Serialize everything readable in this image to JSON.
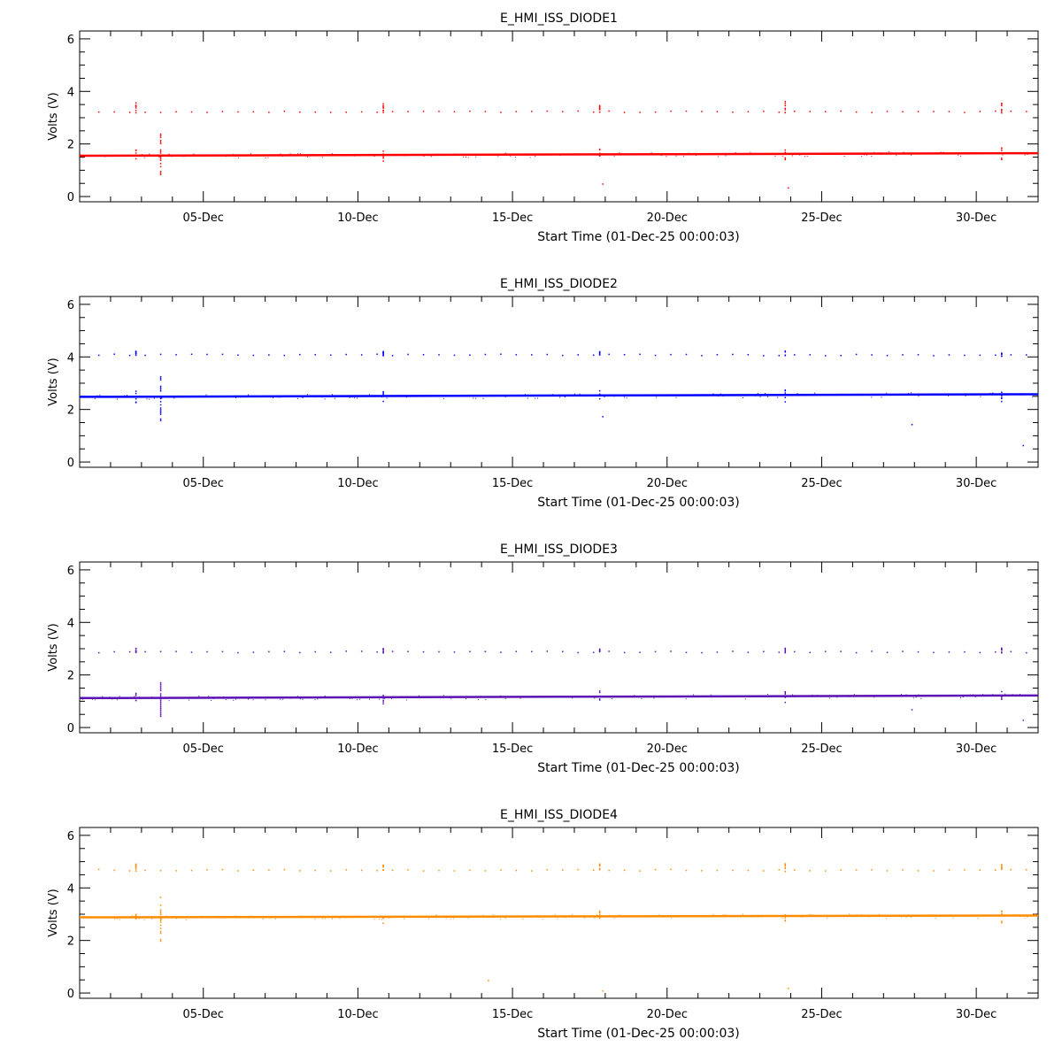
{
  "chart_data": [
    {
      "type": "scatter",
      "title": "E_HMI_ISS_DIODE1",
      "xlabel": "Start Time (01-Dec-25 00:00:03)",
      "ylabel": "Volts (V)",
      "color": "#ff0000",
      "xlim": [
        "2025-12-01",
        "2026-01-01"
      ],
      "ylim": [
        -0.2,
        6.3
      ],
      "y_ticks": [
        0,
        2,
        4,
        6
      ],
      "x_ticks": [
        "05-Dec",
        "10-Dec",
        "15-Dec",
        "20-Dec",
        "25-Dec",
        "30-Dec"
      ],
      "baseline": {
        "start": 1.55,
        "end": 1.65
      },
      "periodic_level": 3.25,
      "burst_days": [
        2.8,
        10.8,
        17.8,
        23.8,
        30.8
      ],
      "burst_high": 3.6,
      "outliers": [
        {
          "x": "2025-12-03.6",
          "y": 2.4
        },
        {
          "x": "2025-12-03.6",
          "y": 0.8
        },
        {
          "x": "2025-12-17.9",
          "y": 0.5
        },
        {
          "x": "2025-12-23.9",
          "y": 0.35
        }
      ]
    },
    {
      "type": "scatter",
      "title": "E_HMI_ISS_DIODE2",
      "xlabel": "Start Time (01-Dec-25 00:00:03)",
      "ylabel": "Volts (V)",
      "color": "#0000ff",
      "xlim": [
        "2025-12-01",
        "2026-01-01"
      ],
      "ylim": [
        -0.2,
        6.3
      ],
      "y_ticks": [
        0,
        2,
        4,
        6
      ],
      "x_ticks": [
        "05-Dec",
        "10-Dec",
        "15-Dec",
        "20-Dec",
        "25-Dec",
        "30-Dec"
      ],
      "baseline": {
        "start": 2.48,
        "end": 2.58
      },
      "periodic_level": 4.1,
      "burst_days": [
        2.8,
        10.8,
        17.8,
        23.8,
        30.8
      ],
      "burst_high": 4.2,
      "outliers": [
        {
          "x": "2025-12-03.6",
          "y": 3.3
        },
        {
          "x": "2025-12-03.6",
          "y": 1.6
        },
        {
          "x": "2025-12-17.9",
          "y": 1.75
        },
        {
          "x": "2025-12-27.9",
          "y": 1.45
        },
        {
          "x": "2025-12-31.5",
          "y": 0.65
        }
      ]
    },
    {
      "type": "scatter",
      "title": "E_HMI_ISS_DIODE3",
      "xlabel": "Start Time (01-Dec-25 00:00:03)",
      "ylabel": "Volts (V)",
      "color": "#5a12b4",
      "xlim": [
        "2025-12-01",
        "2026-01-01"
      ],
      "ylim": [
        -0.2,
        6.3
      ],
      "y_ticks": [
        0,
        2,
        4,
        6
      ],
      "x_ticks": [
        "05-Dec",
        "10-Dec",
        "15-Dec",
        "20-Dec",
        "25-Dec",
        "30-Dec"
      ],
      "baseline": {
        "start": 1.12,
        "end": 1.22
      },
      "periodic_level": 2.9,
      "burst_days": [
        2.8,
        10.8,
        17.8,
        23.8,
        30.8
      ],
      "burst_high": 3.0,
      "outliers": [
        {
          "x": "2025-12-03.6",
          "y": 1.9
        },
        {
          "x": "2025-12-03.6",
          "y": 0.45
        },
        {
          "x": "2025-12-27.9",
          "y": 0.7
        },
        {
          "x": "2025-12-31.5",
          "y": 0.3
        }
      ]
    },
    {
      "type": "scatter",
      "title": "E_HMI_ISS_DIODE4",
      "xlabel": "Start Time (01-Dec-25 00:00:03)",
      "ylabel": "Volts (V)",
      "color": "#ff8c00",
      "xlim": [
        "2025-12-01",
        "2026-01-01"
      ],
      "ylim": [
        -0.2,
        6.3
      ],
      "y_ticks": [
        0,
        2,
        4,
        6
      ],
      "x_ticks": [
        "05-Dec",
        "10-Dec",
        "15-Dec",
        "20-Dec",
        "25-Dec",
        "30-Dec"
      ],
      "baseline": {
        "start": 2.88,
        "end": 2.95
      },
      "periodic_level": 4.7,
      "burst_days": [
        2.8,
        10.8,
        17.8,
        23.8,
        30.8
      ],
      "burst_high": 4.9,
      "outliers": [
        {
          "x": "2025-12-03.6",
          "y": 3.7
        },
        {
          "x": "2025-12-03.6",
          "y": 2.0
        },
        {
          "x": "2025-12-14.2",
          "y": 0.5
        },
        {
          "x": "2025-12-17.9",
          "y": 0.1
        },
        {
          "x": "2025-12-23.9",
          "y": 0.2
        }
      ]
    }
  ]
}
